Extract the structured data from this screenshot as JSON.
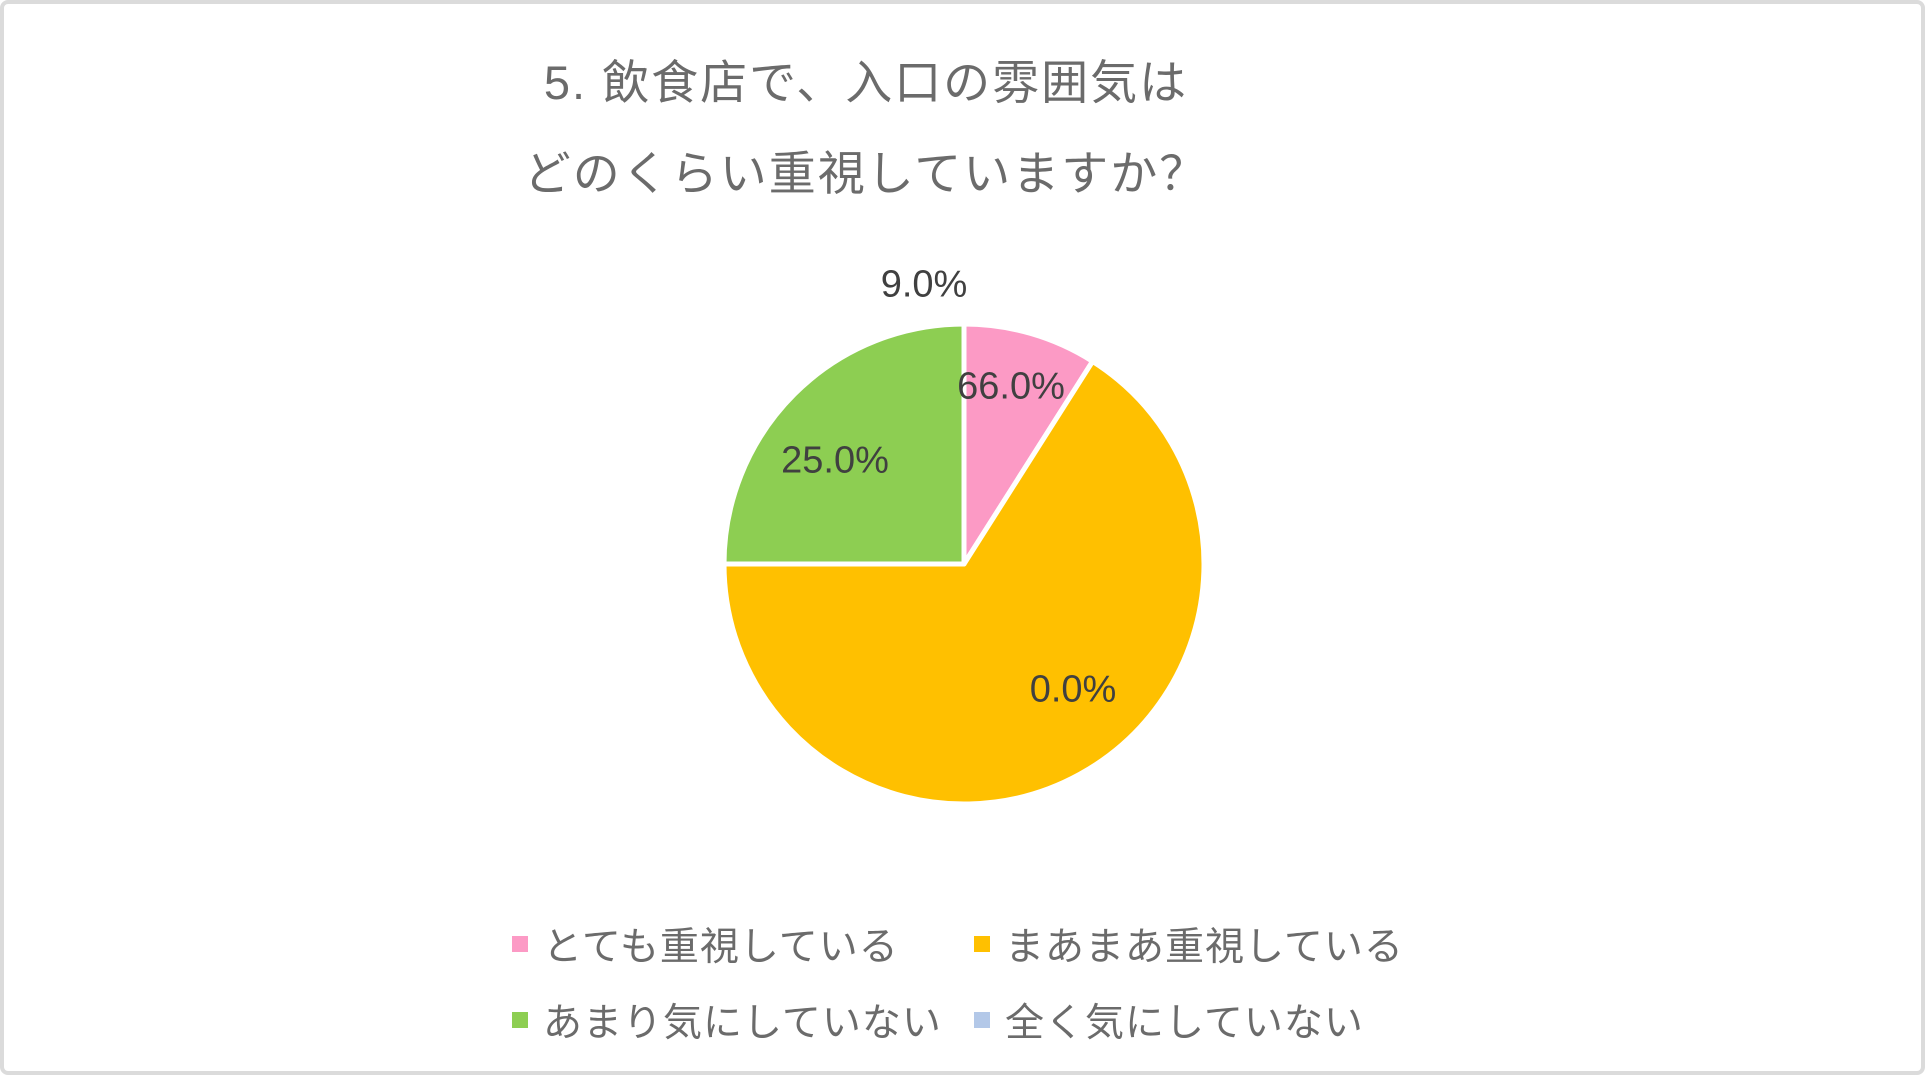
{
  "chart": {
    "title_line1": "5. 飲食店で、入口の雰囲気は",
    "title_line2": "どのくらい重視していますか？"
  },
  "chart_data": {
    "type": "pie",
    "title": "5. 飲食店で、入口の雰囲気はどのくらい重視していますか？",
    "categories": [
      "とても重視している",
      "まあまあ重視している",
      "あまり気にしていない",
      "全く気にしていない"
    ],
    "values": [
      9.0,
      66.0,
      25.0,
      0.0
    ],
    "labels": [
      "9.0%",
      "66.0%",
      "25.0%",
      "0.0%"
    ],
    "colors": [
      "#fc9ac5",
      "#ffc000",
      "#8dce52",
      "#b3c8e8"
    ],
    "legend_position": "bottom",
    "start_angle_deg": 0,
    "direction": "clockwise",
    "slice_border_color": "#ffffff",
    "label_color": "#404040",
    "title_color": "#6b6b6b"
  },
  "legend": {
    "items": [
      {
        "label": "とても重視している"
      },
      {
        "label": "まあまあ重視している"
      },
      {
        "label": "あまり気にしていない"
      },
      {
        "label": "全く気にしていない"
      }
    ]
  }
}
